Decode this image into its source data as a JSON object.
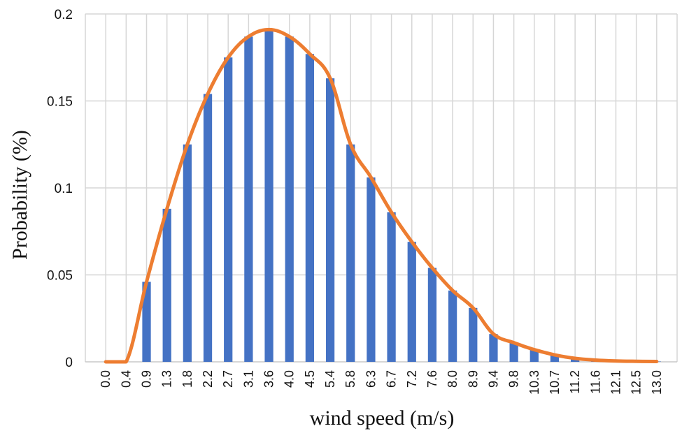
{
  "chart_data": {
    "type": "bar",
    "title": "",
    "xlabel": "wind speed (m/s)",
    "ylabel": "Probability (%)",
    "ylim": [
      0,
      0.2
    ],
    "yticks": [
      "0",
      "0.05",
      "0.1",
      "0.15",
      "0.2"
    ],
    "grid": true,
    "legend": "none",
    "categories": [
      "0.0",
      "0.4",
      "0.9",
      "1.3",
      "1.8",
      "2.2",
      "2.7",
      "3.1",
      "3.6",
      "4.0",
      "4.5",
      "5.4",
      "5.8",
      "6.3",
      "6.7",
      "7.2",
      "7.6",
      "8.0",
      "8.9",
      "9.4",
      "9.8",
      "10.3",
      "10.7",
      "11.2",
      "11.6",
      "12.1",
      "12.5",
      "13.0"
    ],
    "series": [
      {
        "type": "bar",
        "color": "#4472c4",
        "values": [
          0,
          0,
          0.046,
          0.088,
          0.125,
          0.154,
          0.175,
          0.187,
          0.191,
          0.187,
          0.177,
          0.163,
          0.125,
          0.106,
          0.086,
          0.069,
          0.054,
          0.041,
          0.031,
          0.016,
          0.011,
          0.007,
          0.004,
          0.002,
          0.001,
          0.0005,
          0.0003,
          0.0002
        ]
      },
      {
        "type": "line",
        "color": "#ed7d31",
        "values": [
          0,
          0,
          0.046,
          0.088,
          0.125,
          0.154,
          0.175,
          0.187,
          0.191,
          0.187,
          0.177,
          0.163,
          0.125,
          0.106,
          0.086,
          0.069,
          0.054,
          0.041,
          0.031,
          0.016,
          0.011,
          0.007,
          0.004,
          0.002,
          0.001,
          0.0005,
          0.0003,
          0.0002
        ]
      }
    ]
  }
}
